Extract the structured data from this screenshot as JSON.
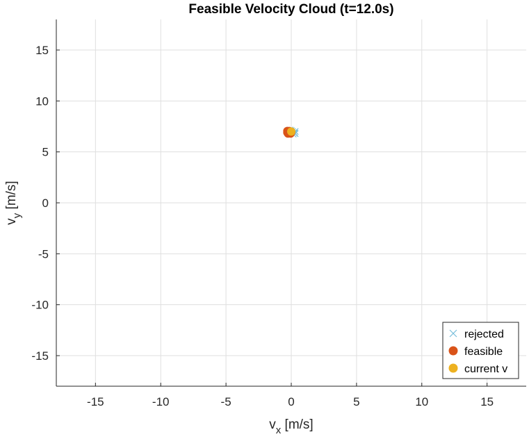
{
  "chart_data": {
    "type": "scatter",
    "title": "Feasible Velocity Cloud (t=12.0s)",
    "xlabel": {
      "base": "v",
      "sub": "x",
      "unit": " [m/s]"
    },
    "ylabel": {
      "base": "v",
      "sub": "y",
      "unit": " [m/s]"
    },
    "xlim": [
      -18,
      18
    ],
    "ylim": [
      -18,
      18
    ],
    "xticks": [
      -15,
      -10,
      -5,
      0,
      5,
      10,
      15
    ],
    "yticks": [
      -15,
      -10,
      -5,
      0,
      5,
      10,
      15
    ],
    "grid": true,
    "legend_position": "bottom-right",
    "series": [
      {
        "name": "rejected",
        "marker": "x",
        "color": "#77BEDB",
        "points": [
          [
            0.0,
            7.1
          ],
          [
            0.1,
            7.0
          ],
          [
            0.2,
            6.9
          ],
          [
            0.25,
            6.85
          ],
          [
            0.3,
            7.0
          ],
          [
            0.3,
            6.8
          ],
          [
            0.15,
            6.75
          ],
          [
            -0.1,
            7.15
          ]
        ]
      },
      {
        "name": "feasible",
        "marker": "o",
        "color": "#D95319",
        "points": [
          [
            -0.3,
            6.9
          ],
          [
            -0.2,
            7.0
          ],
          [
            -0.1,
            6.85
          ],
          [
            -0.25,
            6.8
          ],
          [
            -0.15,
            7.05
          ],
          [
            0.0,
            6.95
          ],
          [
            -0.05,
            6.8
          ],
          [
            -0.3,
            7.05
          ]
        ]
      },
      {
        "name": "current v",
        "marker": "o",
        "color": "#EDB120",
        "points": [
          [
            0.0,
            7.0
          ]
        ]
      }
    ]
  }
}
